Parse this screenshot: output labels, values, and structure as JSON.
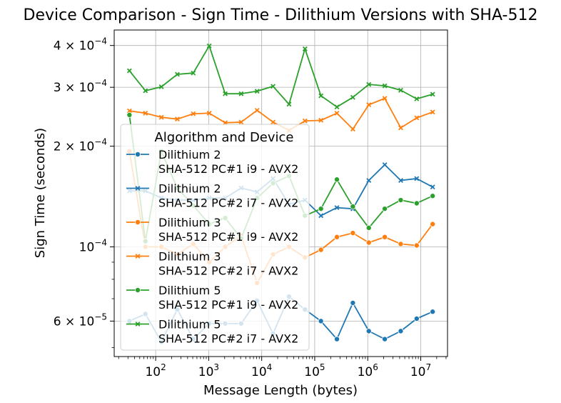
{
  "chart_data": {
    "type": "line",
    "title": "Device Comparison - Sign Time - Dilithium Versions with SHA-512",
    "xlabel": "Message Length (bytes)",
    "ylabel": "Sign Time (seconds)",
    "xscale": "log",
    "yscale": "log",
    "xlim": [
      16.5,
      32000000
    ],
    "ylim": [
      4.7e-05,
      0.000445
    ],
    "grid": true,
    "x_ticks": [
      {
        "value": 100,
        "base": "10",
        "exp": "2"
      },
      {
        "value": 1000,
        "base": "10",
        "exp": "3"
      },
      {
        "value": 10000,
        "base": "10",
        "exp": "4"
      },
      {
        "value": 100000,
        "base": "10",
        "exp": "5"
      },
      {
        "value": 1000000,
        "base": "10",
        "exp": "6"
      },
      {
        "value": 10000000,
        "base": "10",
        "exp": "7"
      }
    ],
    "y_ticks": [
      {
        "value": 6e-05,
        "mant": "6 × ",
        "base": "10",
        "exp": "−5"
      },
      {
        "value": 0.0001,
        "mant": "",
        "base": "10",
        "exp": "−4"
      },
      {
        "value": 0.0002,
        "mant": "2 × ",
        "base": "10",
        "exp": "−4"
      },
      {
        "value": 0.0003,
        "mant": "3 × ",
        "base": "10",
        "exp": "−4"
      },
      {
        "value": 0.0004,
        "mant": "4 × ",
        "base": "10",
        "exp": "−4"
      }
    ],
    "x": [
      32,
      64,
      128,
      256,
      512,
      1024,
      2048,
      4096,
      8192,
      16384,
      32768,
      65536,
      131072,
      262144,
      524288,
      1048576,
      2097152,
      4194304,
      8388608,
      16777216
    ],
    "legend": {
      "title": "Algorithm and Device",
      "position": "center-left"
    },
    "series": [
      {
        "name": "Dilithium 2\nSHA-512 PC#1 i9 - AVX2",
        "color": "#1f77b4",
        "marker": "circle",
        "values": [
          6e-05,
          6.3e-05,
          5.2e-05,
          6.5e-05,
          5.3e-05,
          5.9e-05,
          5.9e-05,
          5.9e-05,
          6.9e-05,
          5.5e-05,
          7.1e-05,
          6.5e-05,
          6e-05,
          5.3e-05,
          6.8e-05,
          5.6e-05,
          5.3e-05,
          5.6e-05,
          6.1e-05,
          6.4e-05
        ]
      },
      {
        "name": "Dilithium 2\nSHA-512 PC#2 i7 - AVX2",
        "color": "#1f77b4",
        "marker": "x",
        "values": [
          0.000147,
          0.000147,
          0.00014,
          0.000138,
          0.000138,
          0.00014,
          0.00014,
          0.00015,
          0.000146,
          0.00016,
          0.000134,
          0.000138,
          0.000124,
          0.000131,
          0.00013,
          0.000158,
          0.000176,
          0.000158,
          0.00016,
          0.000151
        ]
      },
      {
        "name": "Dilithium 3\nSHA-512 PC#1 i9 - AVX2",
        "color": "#ff7f0e",
        "marker": "circle",
        "values": [
          0.000193,
          0.0001,
          0.0001,
          9.5e-05,
          0.000102,
          9e-05,
          0.0001,
          0.000108,
          7.8e-05,
          9.5e-05,
          0.0001,
          9.3e-05,
          9.8e-05,
          0.000107,
          0.00011,
          0.000103,
          0.000107,
          0.000102,
          0.000101,
          0.000117
        ]
      },
      {
        "name": "Dilithium 3\nSHA-512 PC#2 i7 - AVX2",
        "color": "#ff7f0e",
        "marker": "x",
        "values": [
          0.000255,
          0.000251,
          0.000244,
          0.000241,
          0.00025,
          0.000251,
          0.000235,
          0.000236,
          0.000256,
          0.000236,
          0.000223,
          0.000238,
          0.000239,
          0.000251,
          0.000225,
          0.000266,
          0.000278,
          0.000227,
          0.000243,
          0.000253
        ]
      },
      {
        "name": "Dilithium 5\nSHA-512 PC#1 i9 - AVX2",
        "color": "#2ca02c",
        "marker": "circle",
        "values": [
          0.000248,
          0.000104,
          0.000193,
          0.00015,
          0.000133,
          0.000117,
          0.000122,
          0.000106,
          0.00014,
          0.000155,
          0.000163,
          0.000124,
          0.00013,
          0.000159,
          0.000132,
          0.000114,
          0.00013,
          0.000138,
          0.000135,
          0.000142
        ]
      },
      {
        "name": "Dilithium 5\nSHA-512 PC#2 i7 - AVX2",
        "color": "#2ca02c",
        "marker": "x",
        "values": [
          0.000336,
          0.000293,
          0.000301,
          0.000328,
          0.000331,
          0.000399,
          0.000287,
          0.000287,
          0.000292,
          0.000302,
          0.000267,
          0.000391,
          0.000283,
          0.000262,
          0.00028,
          0.000306,
          0.000303,
          0.000294,
          0.000277,
          0.000286
        ]
      }
    ]
  }
}
